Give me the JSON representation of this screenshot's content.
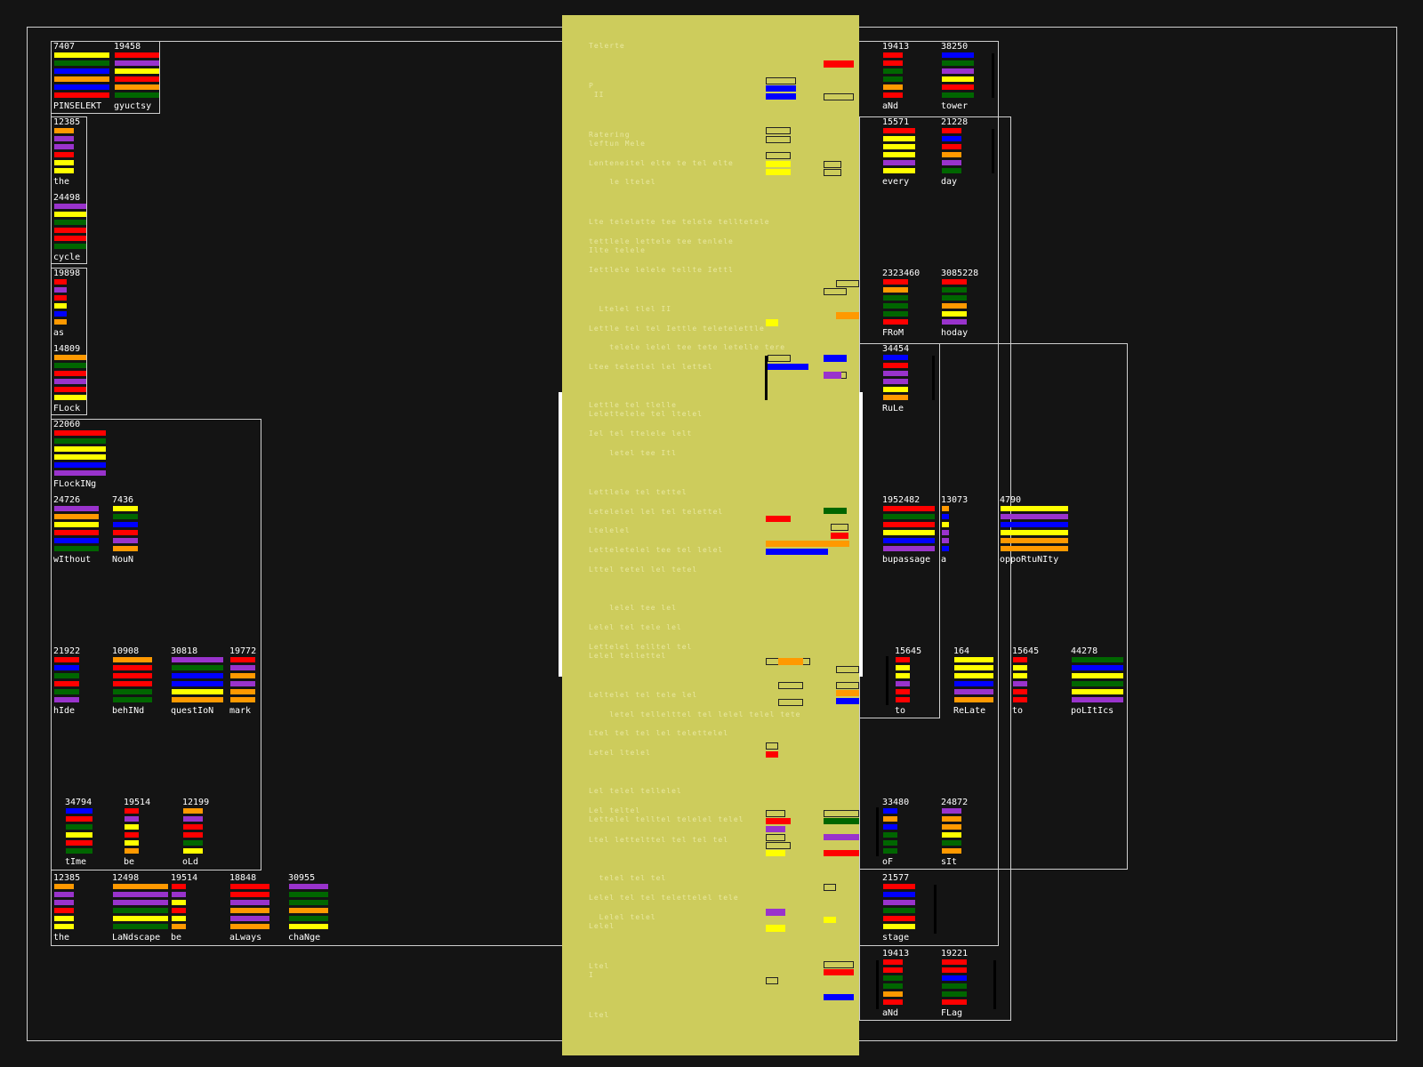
{
  "palette": {
    "red": "#ff0000",
    "yellow": "#ffff00",
    "blue": "#0000ff",
    "orange": "#ff9900",
    "purple": "#9933cc",
    "green": "#006600",
    "panel": "#cdcc5c"
  },
  "tiles": [
    {
      "num": "7407",
      "label": "PINSELEKT",
      "bars": [
        "yellow",
        "green",
        "blue",
        "orange",
        "blue",
        "red"
      ]
    },
    {
      "num": "19458",
      "label": "gyuctsy",
      "bars": [
        "red",
        "purple",
        "yellow",
        "red",
        "orange",
        "green"
      ]
    },
    {
      "num": "12385",
      "label": "the",
      "bars": [
        "orange",
        "purple",
        "purple",
        "red",
        "yellow",
        "yellow"
      ]
    },
    {
      "num": "24498",
      "label": "cycle",
      "bars": [
        "purple",
        "yellow",
        "green",
        "red",
        "red",
        "green"
      ]
    },
    {
      "num": "19898",
      "label": "as",
      "bars": [
        "red",
        "purple",
        "red",
        "yellow",
        "blue",
        "orange"
      ]
    },
    {
      "num": "14809",
      "label": "FLock",
      "bars": [
        "orange",
        "green",
        "red",
        "purple",
        "red",
        "yellow"
      ]
    },
    {
      "num": "22060",
      "label": "FLockINg",
      "bars": [
        "red",
        "green",
        "yellow",
        "yellow",
        "blue",
        "purple"
      ]
    },
    {
      "num": "24726",
      "label": "wIthout",
      "bars": [
        "purple",
        "orange",
        "yellow",
        "red",
        "blue",
        "green"
      ]
    },
    {
      "num": "7436",
      "label": "NouN",
      "bars": [
        "yellow",
        "green",
        "blue",
        "red",
        "purple",
        "orange"
      ]
    },
    {
      "num": "21922",
      "label": "hIde",
      "bars": [
        "red",
        "blue",
        "green",
        "red",
        "green",
        "purple"
      ]
    },
    {
      "num": "10908",
      "label": "behINd",
      "bars": [
        "orange",
        "red",
        "red",
        "red",
        "green",
        "green"
      ]
    },
    {
      "num": "30818",
      "label": "questIoN",
      "bars": [
        "purple",
        "green",
        "blue",
        "blue",
        "yellow",
        "orange"
      ]
    },
    {
      "num": "19772",
      "label": "mark",
      "bars": [
        "red",
        "purple",
        "orange",
        "purple",
        "orange",
        "orange"
      ]
    },
    {
      "num": "34794",
      "label": "tIme",
      "bars": [
        "blue",
        "red",
        "green",
        "yellow",
        "red",
        "green"
      ]
    },
    {
      "num": "19514",
      "label": "be",
      "bars": [
        "red",
        "purple",
        "yellow",
        "red",
        "yellow",
        "orange"
      ]
    },
    {
      "num": "12199",
      "label": "oLd",
      "bars": [
        "orange",
        "purple",
        "red",
        "red",
        "green",
        "yellow"
      ]
    },
    {
      "num": "12385",
      "label": "the",
      "bars": [
        "orange",
        "purple",
        "purple",
        "red",
        "yellow",
        "yellow"
      ]
    },
    {
      "num": "12498",
      "label": "LaNdscape",
      "bars": [
        "orange",
        "purple",
        "purple",
        "green",
        "yellow",
        "green"
      ]
    },
    {
      "num": "19514",
      "label": "be",
      "bars": [
        "red",
        "purple",
        "yellow",
        "red",
        "yellow",
        "orange"
      ]
    },
    {
      "num": "18848",
      "label": "aLways",
      "bars": [
        "red",
        "red",
        "purple",
        "orange",
        "purple",
        "orange"
      ]
    },
    {
      "num": "30955",
      "label": "chaNge",
      "bars": [
        "purple",
        "green",
        "green",
        "orange",
        "green",
        "yellow"
      ]
    },
    {
      "num": "19413",
      "label": "aNd",
      "bars": [
        "red",
        "red",
        "green",
        "green",
        "orange",
        "red"
      ]
    },
    {
      "num": "38250",
      "label": "tower",
      "bars": [
        "blue",
        "green",
        "purple",
        "yellow",
        "red",
        "green"
      ]
    },
    {
      "num": "15571",
      "label": "every",
      "bars": [
        "red",
        "yellow",
        "yellow",
        "yellow",
        "purple",
        "yellow"
      ]
    },
    {
      "num": "21228",
      "label": "day",
      "bars": [
        "red",
        "blue",
        "red",
        "orange",
        "purple",
        "green"
      ]
    },
    {
      "num": "2323460",
      "label": "FRoM",
      "bars": [
        "red",
        "orange",
        "green",
        "green",
        "green",
        "red"
      ]
    },
    {
      "num": "3085228",
      "label": "hoday",
      "bars": [
        "red",
        "green",
        "green",
        "orange",
        "yellow",
        "purple"
      ]
    },
    {
      "num": "34454",
      "label": "RuLe",
      "bars": [
        "blue",
        "red",
        "purple",
        "purple",
        "yellow",
        "orange"
      ]
    },
    {
      "num": "1952482",
      "label": "bupassage",
      "bars": [
        "red",
        "green",
        "red",
        "yellow",
        "blue",
        "purple"
      ]
    },
    {
      "num": "13073",
      "label": "a",
      "bars": [
        "orange",
        "blue",
        "yellow",
        "purple",
        "purple",
        "blue"
      ]
    },
    {
      "num": "4790",
      "label": "oppoRtuNIty",
      "bars": [
        "yellow",
        "purple",
        "blue",
        "yellow",
        "orange",
        "orange"
      ]
    },
    {
      "num": "15645",
      "label": "to",
      "bars": [
        "red",
        "yellow",
        "yellow",
        "purple",
        "red",
        "red"
      ]
    },
    {
      "num": "164",
      "label": "ReLate",
      "bars": [
        "yellow",
        "yellow",
        "yellow",
        "blue",
        "purple",
        "orange"
      ]
    },
    {
      "num": "15645",
      "label": "to",
      "bars": [
        "red",
        "yellow",
        "yellow",
        "purple",
        "red",
        "red"
      ]
    },
    {
      "num": "44278",
      "label": "poLItIcs",
      "bars": [
        "green",
        "blue",
        "yellow",
        "green",
        "yellow",
        "purple"
      ]
    },
    {
      "num": "33480",
      "label": "oF",
      "bars": [
        "blue",
        "orange",
        "blue",
        "green",
        "green",
        "green"
      ]
    },
    {
      "num": "24872",
      "label": "sIt",
      "bars": [
        "purple",
        "orange",
        "orange",
        "yellow",
        "green",
        "orange"
      ]
    },
    {
      "num": "21577",
      "label": "stage",
      "bars": [
        "red",
        "blue",
        "purple",
        "green",
        "red",
        "yellow"
      ]
    },
    {
      "num": "19413",
      "label": "aNd",
      "bars": [
        "red",
        "red",
        "green",
        "green",
        "orange",
        "red"
      ]
    },
    {
      "num": "19221",
      "label": "FLag",
      "bars": [
        "red",
        "red",
        "blue",
        "green",
        "green",
        "red"
      ]
    }
  ]
}
